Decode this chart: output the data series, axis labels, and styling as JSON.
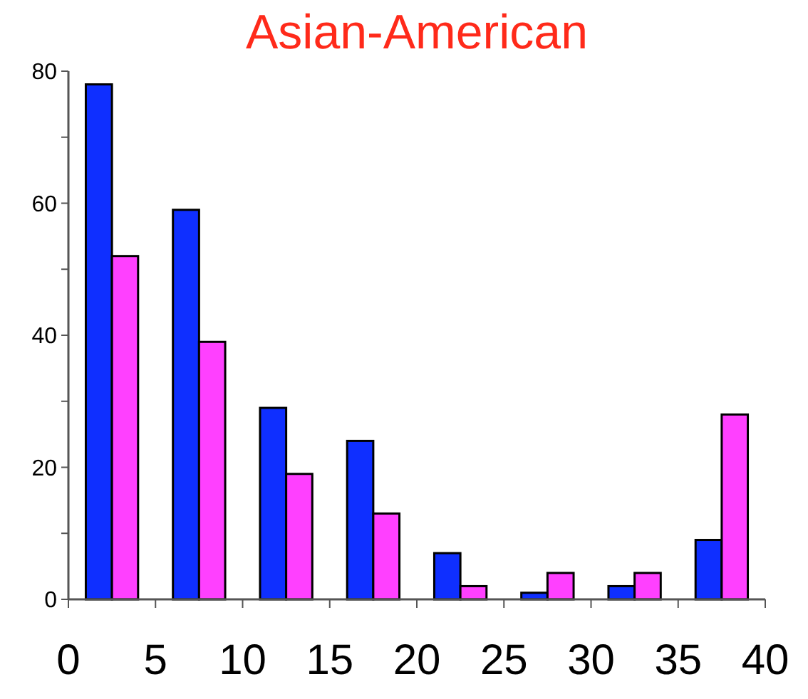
{
  "chart_data": {
    "type": "bar",
    "title": "Asian-American",
    "x": [
      2.5,
      7.5,
      12.5,
      17.5,
      22.5,
      27.5,
      32.5,
      37.5
    ],
    "series": [
      {
        "color": "#0f2fff",
        "values": [
          78,
          59,
          29,
          24,
          7,
          1,
          2,
          9
        ]
      },
      {
        "color": "#ff40ff",
        "values": [
          52,
          39,
          19,
          13,
          2,
          4,
          4,
          28
        ]
      }
    ],
    "xlim": [
      0,
      40
    ],
    "xticks": [
      0,
      5,
      10,
      15,
      20,
      25,
      30,
      35,
      40
    ],
    "ylim": [
      0,
      80
    ],
    "yticks": [
      0,
      {
        "value": 10,
        "label": null
      },
      20,
      {
        "value": 30,
        "label": null
      },
      40,
      {
        "value": 50,
        "label": null
      },
      60,
      {
        "value": 70,
        "label": null
      },
      80
    ],
    "grid": false
  }
}
